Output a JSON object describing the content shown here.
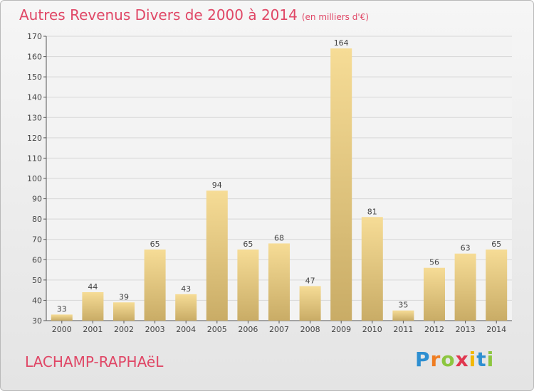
{
  "title": "Autres Revenus Divers de 2000 à 2014",
  "unit": "(en milliers d'€)",
  "commune": "LACHAMP-RAPHAëL",
  "logo": {
    "letters": [
      "P",
      "r",
      "o",
      "x",
      "i",
      "t",
      "i"
    ],
    "colors": [
      "#2e8fd1",
      "#ef7d22",
      "#8cc63f",
      "#e0374f",
      "#f2b705",
      "#2e8fd1",
      "#8cc63f"
    ]
  },
  "colors": {
    "title": "#e04766",
    "bar_light": "#f6dc96",
    "bar_dark": "#c9ac66",
    "axis": "#555555",
    "grid": "#d7d7d7"
  },
  "chart_data": {
    "type": "bar",
    "categories": [
      "2000",
      "2001",
      "2002",
      "2003",
      "2004",
      "2005",
      "2006",
      "2007",
      "2008",
      "2009",
      "2010",
      "2011",
      "2012",
      "2013",
      "2014"
    ],
    "values": [
      33,
      44,
      39,
      65,
      43,
      94,
      65,
      68,
      47,
      164,
      81,
      35,
      56,
      63,
      65
    ],
    "ylim": [
      30,
      170
    ],
    "yticks": [
      30,
      40,
      50,
      60,
      70,
      80,
      90,
      100,
      110,
      120,
      130,
      140,
      150,
      160,
      170
    ],
    "grid": true,
    "data_labels": true
  }
}
